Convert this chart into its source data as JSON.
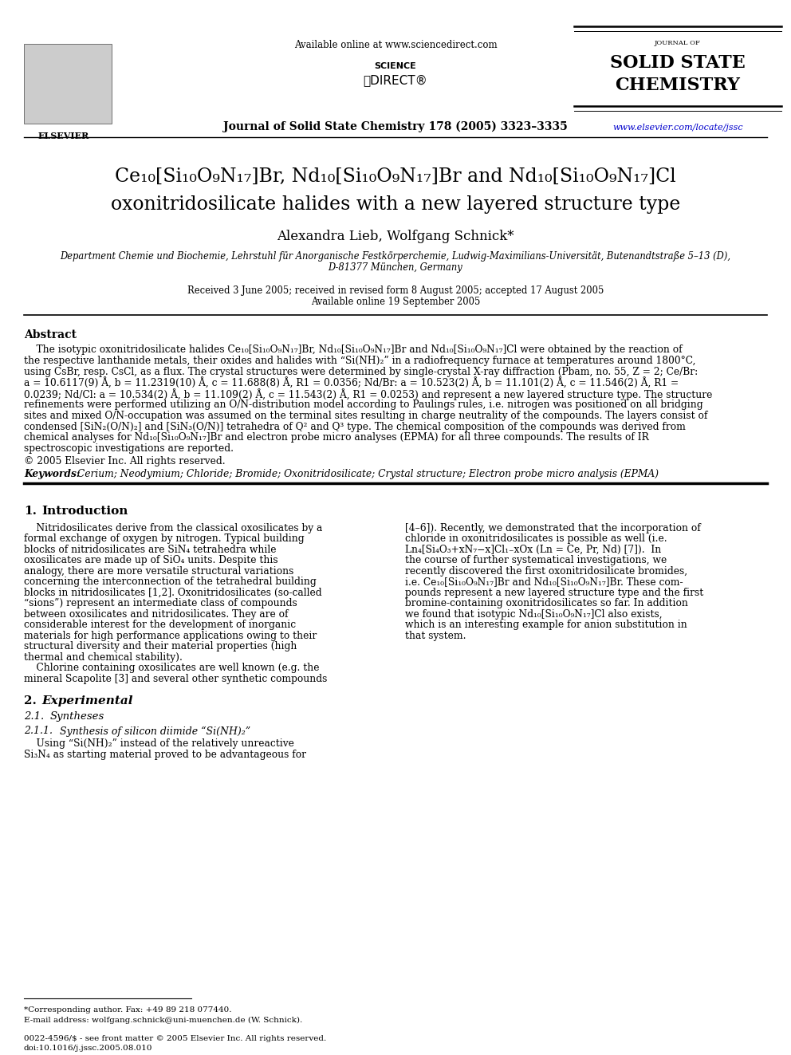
{
  "background_color": "#ffffff",
  "header": {
    "available_online": "Available online at www.sciencedirect.com",
    "journal_line": "Journal of Solid State Chemistry 178 (2005) 3323–3335",
    "journal_name_small": "JOURNAL OF",
    "website": "www.elsevier.com/locate/jssc",
    "elsevier_label": "ELSEVIER"
  },
  "title_line1": "Ce₁₀[Si₁₀O₉N₁₇]Br, Nd₁₀[Si₁₀O₉N₁₇]Br and Nd₁₀[Si₁₀O₉N₁₇]Cl",
  "title_line2": "oxonitridosilicate halides with a new layered structure type",
  "authors": "Alexandra Lieb, Wolfgang Schnick*",
  "affiliation1": "Department Chemie und Biochemie, Lehrstuhl für Anorganische Festkörperchemie, Ludwig-Maximilians-Universität, Butenandtstraße 5–13 (D),",
  "affiliation2": "D-81377 München, Germany",
  "received": "Received 3 June 2005; received in revised form 8 August 2005; accepted 17 August 2005",
  "available": "Available online 19 September 2005",
  "abstract_title": "Abstract",
  "copyright": "© 2005 Elsevier Inc. All rights reserved.",
  "keywords_label": "Keywords:",
  "keywords_text": " Cerium; Neodymium; Chloride; Bromide; Oxonitridosilicate; Crystal structure; Electron probe micro analysis (EPMA)",
  "footnote_star": "*Corresponding author. Fax: +49 89 218 077440.",
  "footnote_email": "E-mail address: wolfgang.schnick@uni-muenchen.de (W. Schnick).",
  "footer1": "0022-4596/$ - see front matter © 2005 Elsevier Inc. All rights reserved.",
  "footer2": "doi:10.1016/j.jssc.2005.08.010"
}
